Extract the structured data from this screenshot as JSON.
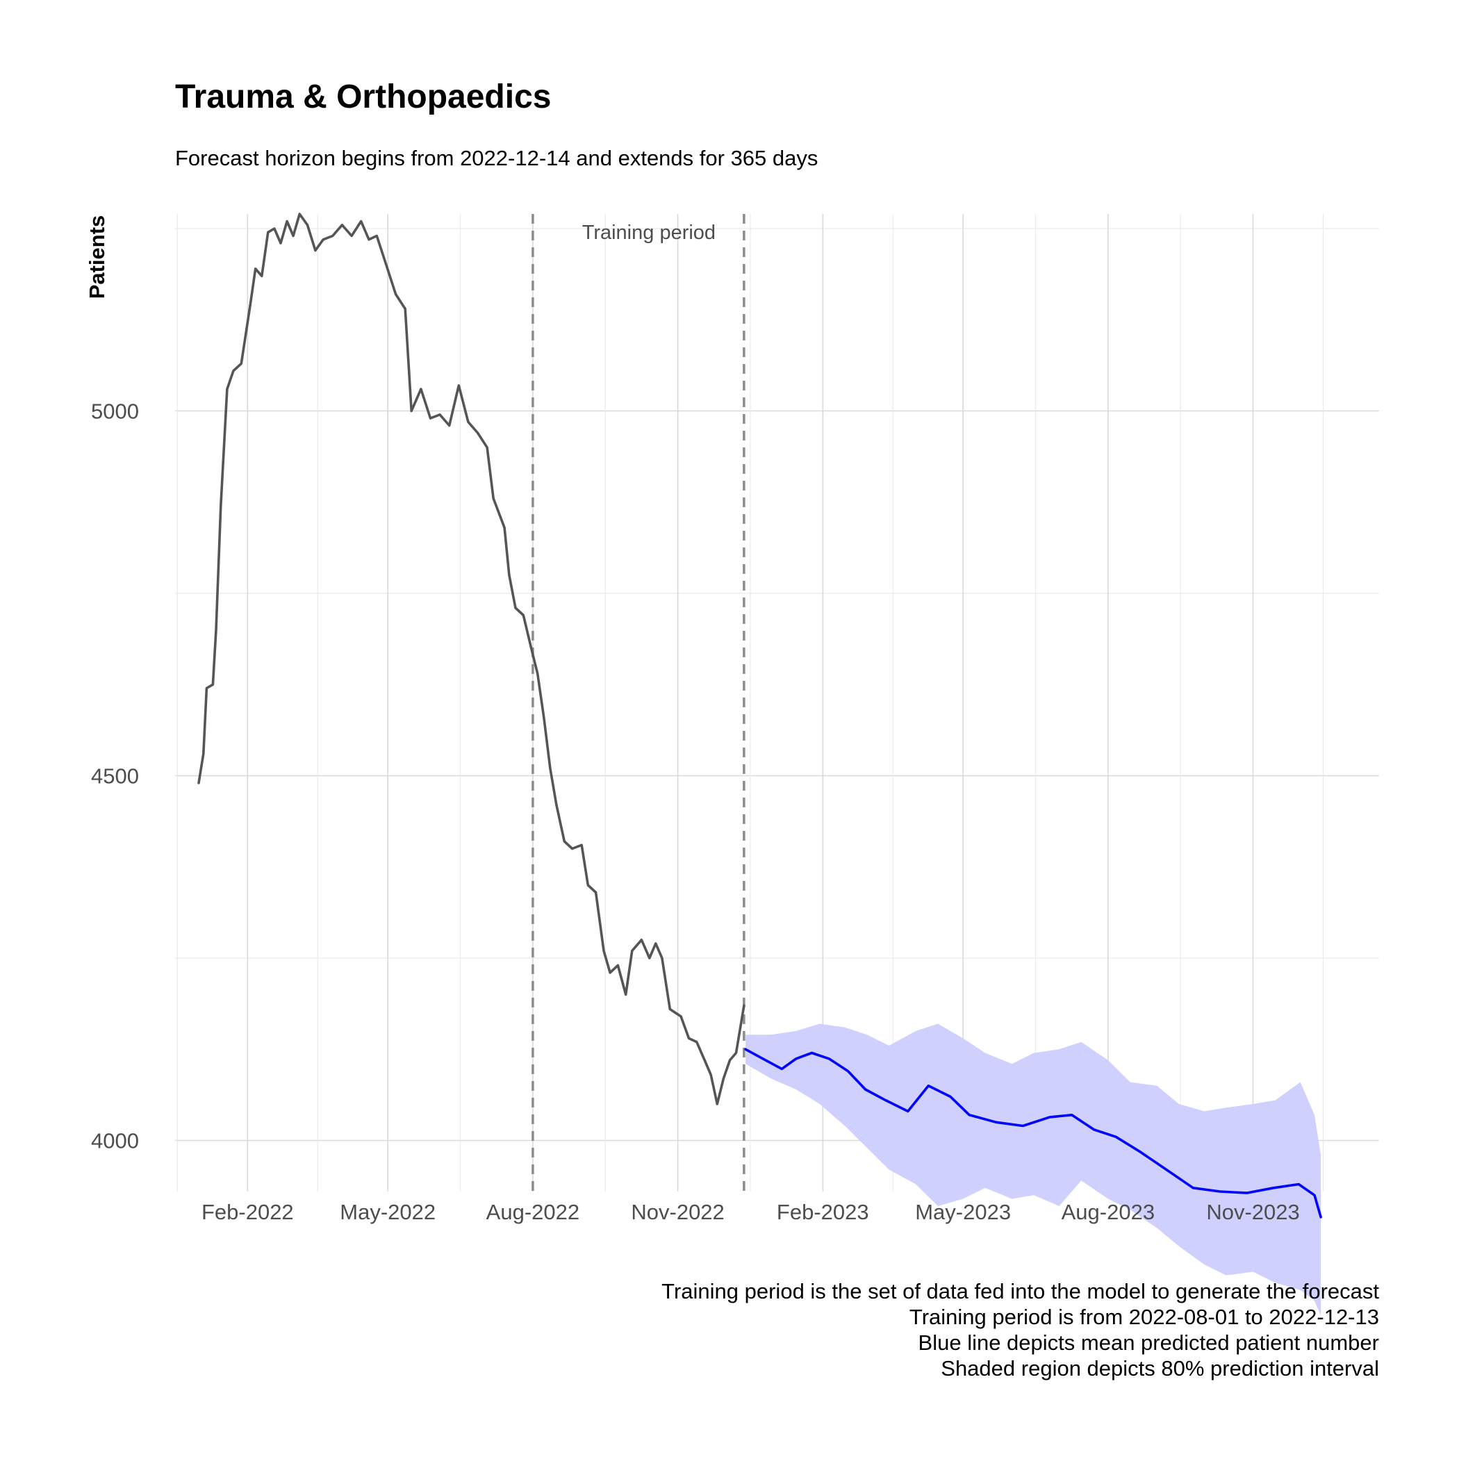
{
  "chart_data": {
    "type": "line",
    "title": "Trauma & Orthopaedics",
    "subtitle": "Forecast horizon begins from 2022-12-14 and extends for 365 days",
    "xlabel": "",
    "ylabel": "Patients",
    "x_ticks": [
      "Feb-2022",
      "May-2022",
      "Aug-2022",
      "Nov-2022",
      "Feb-2023",
      "May-2023",
      "Aug-2023",
      "Nov-2023"
    ],
    "x_tick_dates": [
      "2022-02-01",
      "2022-05-01",
      "2022-08-01",
      "2022-11-01",
      "2023-02-01",
      "2023-05-01",
      "2023-08-01",
      "2023-11-01"
    ],
    "y_ticks": [
      4000,
      4500,
      5000
    ],
    "xlim": [
      "2021-12-17",
      "2024-01-20"
    ],
    "ylim": [
      3930,
      5270
    ],
    "grid": true,
    "annotation": {
      "label": "Training period",
      "start": "2022-08-01",
      "end": "2022-12-13"
    },
    "series": [
      {
        "color": "#555555",
        "points": [
          [
            "2022-01-01",
            4490
          ],
          [
            "2022-01-04",
            4530
          ],
          [
            "2022-01-06",
            4620
          ],
          [
            "2022-01-10",
            4625
          ],
          [
            "2022-01-12",
            4700
          ],
          [
            "2022-01-15",
            4870
          ],
          [
            "2022-01-19",
            5030
          ],
          [
            "2022-01-23",
            5055
          ],
          [
            "2022-01-28",
            5065
          ],
          [
            "2022-02-03",
            5150
          ],
          [
            "2022-02-06",
            5195
          ],
          [
            "2022-02-10",
            5185
          ],
          [
            "2022-02-14",
            5245
          ],
          [
            "2022-02-18",
            5250
          ],
          [
            "2022-02-22",
            5230
          ],
          [
            "2022-02-26",
            5260
          ],
          [
            "2022-03-02",
            5240
          ],
          [
            "2022-03-06",
            5270
          ],
          [
            "2022-03-11",
            5255
          ],
          [
            "2022-03-16",
            5220
          ],
          [
            "2022-03-21",
            5235
          ],
          [
            "2022-03-27",
            5240
          ],
          [
            "2022-04-02",
            5255
          ],
          [
            "2022-04-08",
            5240
          ],
          [
            "2022-04-14",
            5260
          ],
          [
            "2022-04-19",
            5235
          ],
          [
            "2022-04-24",
            5240
          ],
          [
            "2022-04-30",
            5200
          ],
          [
            "2022-05-06",
            5160
          ],
          [
            "2022-05-12",
            5140
          ],
          [
            "2022-05-16",
            5000
          ],
          [
            "2022-05-22",
            5030
          ],
          [
            "2022-05-28",
            4990
          ],
          [
            "2022-06-03",
            4995
          ],
          [
            "2022-06-09",
            4980
          ],
          [
            "2022-06-15",
            5035
          ],
          [
            "2022-06-21",
            4985
          ],
          [
            "2022-06-27",
            4970
          ],
          [
            "2022-07-03",
            4950
          ],
          [
            "2022-07-07",
            4880
          ],
          [
            "2022-07-14",
            4840
          ],
          [
            "2022-07-17",
            4775
          ],
          [
            "2022-07-21",
            4730
          ],
          [
            "2022-07-26",
            4720
          ],
          [
            "2022-07-31",
            4675
          ],
          [
            "2022-08-04",
            4640
          ],
          [
            "2022-08-08",
            4580
          ],
          [
            "2022-08-12",
            4510
          ],
          [
            "2022-08-16",
            4460
          ],
          [
            "2022-08-21",
            4410
          ],
          [
            "2022-08-26",
            4400
          ],
          [
            "2022-09-01",
            4405
          ],
          [
            "2022-09-05",
            4350
          ],
          [
            "2022-09-10",
            4340
          ],
          [
            "2022-09-15",
            4260
          ],
          [
            "2022-09-19",
            4230
          ],
          [
            "2022-09-24",
            4240
          ],
          [
            "2022-09-29",
            4200
          ],
          [
            "2022-10-03",
            4260
          ],
          [
            "2022-10-09",
            4275
          ],
          [
            "2022-10-14",
            4250
          ],
          [
            "2022-10-18",
            4270
          ],
          [
            "2022-10-22",
            4250
          ],
          [
            "2022-10-27",
            4180
          ],
          [
            "2022-11-03",
            4170
          ],
          [
            "2022-11-08",
            4140
          ],
          [
            "2022-11-13",
            4135
          ],
          [
            "2022-11-18",
            4110
          ],
          [
            "2022-11-22",
            4090
          ],
          [
            "2022-11-26",
            4050
          ],
          [
            "2022-11-30",
            4085
          ],
          [
            "2022-12-04",
            4110
          ],
          [
            "2022-12-08",
            4120
          ],
          [
            "2022-12-13",
            4185
          ]
        ]
      },
      {
        "color": "#0000ff",
        "points": [
          [
            "2022-12-14",
            4125
          ],
          [
            "2022-12-25",
            4112
          ],
          [
            "2023-01-06",
            4098
          ],
          [
            "2023-01-15",
            4112
          ],
          [
            "2023-01-25",
            4120
          ],
          [
            "2023-02-05",
            4112
          ],
          [
            "2023-02-17",
            4095
          ],
          [
            "2023-02-28",
            4070
          ],
          [
            "2023-03-13",
            4055
          ],
          [
            "2023-03-27",
            4040
          ],
          [
            "2023-04-09",
            4075
          ],
          [
            "2023-04-23",
            4060
          ],
          [
            "2023-05-05",
            4035
          ],
          [
            "2023-05-22",
            4025
          ],
          [
            "2023-06-08",
            4020
          ],
          [
            "2023-06-25",
            4032
          ],
          [
            "2023-07-09",
            4035
          ],
          [
            "2023-07-23",
            4015
          ],
          [
            "2023-08-06",
            4005
          ],
          [
            "2023-08-21",
            3985
          ],
          [
            "2023-09-07",
            3960
          ],
          [
            "2023-09-24",
            3935
          ],
          [
            "2023-10-11",
            3930
          ],
          [
            "2023-10-28",
            3928
          ],
          [
            "2023-11-14",
            3935
          ],
          [
            "2023-11-30",
            3940
          ],
          [
            "2023-12-10",
            3925
          ],
          [
            "2023-12-14",
            3895
          ]
        ]
      }
    ],
    "interval": {
      "label": "80% prediction interval",
      "color": "#d0d0ff",
      "points": [
        [
          "2022-12-14",
          4145,
          4105
        ],
        [
          "2022-12-30",
          4145,
          4085
        ],
        [
          "2023-01-15",
          4150,
          4070
        ],
        [
          "2023-01-30",
          4160,
          4050
        ],
        [
          "2023-02-15",
          4155,
          4020
        ],
        [
          "2023-03-01",
          4145,
          3990
        ],
        [
          "2023-03-15",
          4130,
          3960
        ],
        [
          "2023-04-01",
          4150,
          3940
        ],
        [
          "2023-04-15",
          4160,
          3910
        ],
        [
          "2023-05-01",
          4140,
          3920
        ],
        [
          "2023-05-15",
          4120,
          3935
        ],
        [
          "2023-06-01",
          4105,
          3920
        ],
        [
          "2023-06-15",
          4120,
          3925
        ],
        [
          "2023-07-01",
          4125,
          3910
        ],
        [
          "2023-07-15",
          4135,
          3945
        ],
        [
          "2023-08-01",
          4110,
          3920
        ],
        [
          "2023-08-15",
          4080,
          3905
        ],
        [
          "2023-09-01",
          4075,
          3880
        ],
        [
          "2023-09-15",
          4050,
          3855
        ],
        [
          "2023-10-01",
          4040,
          3830
        ],
        [
          "2023-10-15",
          4045,
          3815
        ],
        [
          "2023-11-01",
          4050,
          3820
        ],
        [
          "2023-11-15",
          4055,
          3805
        ],
        [
          "2023-12-01",
          4080,
          3795
        ],
        [
          "2023-12-10",
          4035,
          3780
        ],
        [
          "2023-12-14",
          3980,
          3760
        ]
      ]
    },
    "caption": [
      "Training period is the set of data fed into the model to generate the forecast",
      "Training period is from 2022-08-01 to 2022-12-13",
      "Blue line depicts mean predicted patient number",
      "Shaded region depicts 80% prediction interval"
    ]
  }
}
